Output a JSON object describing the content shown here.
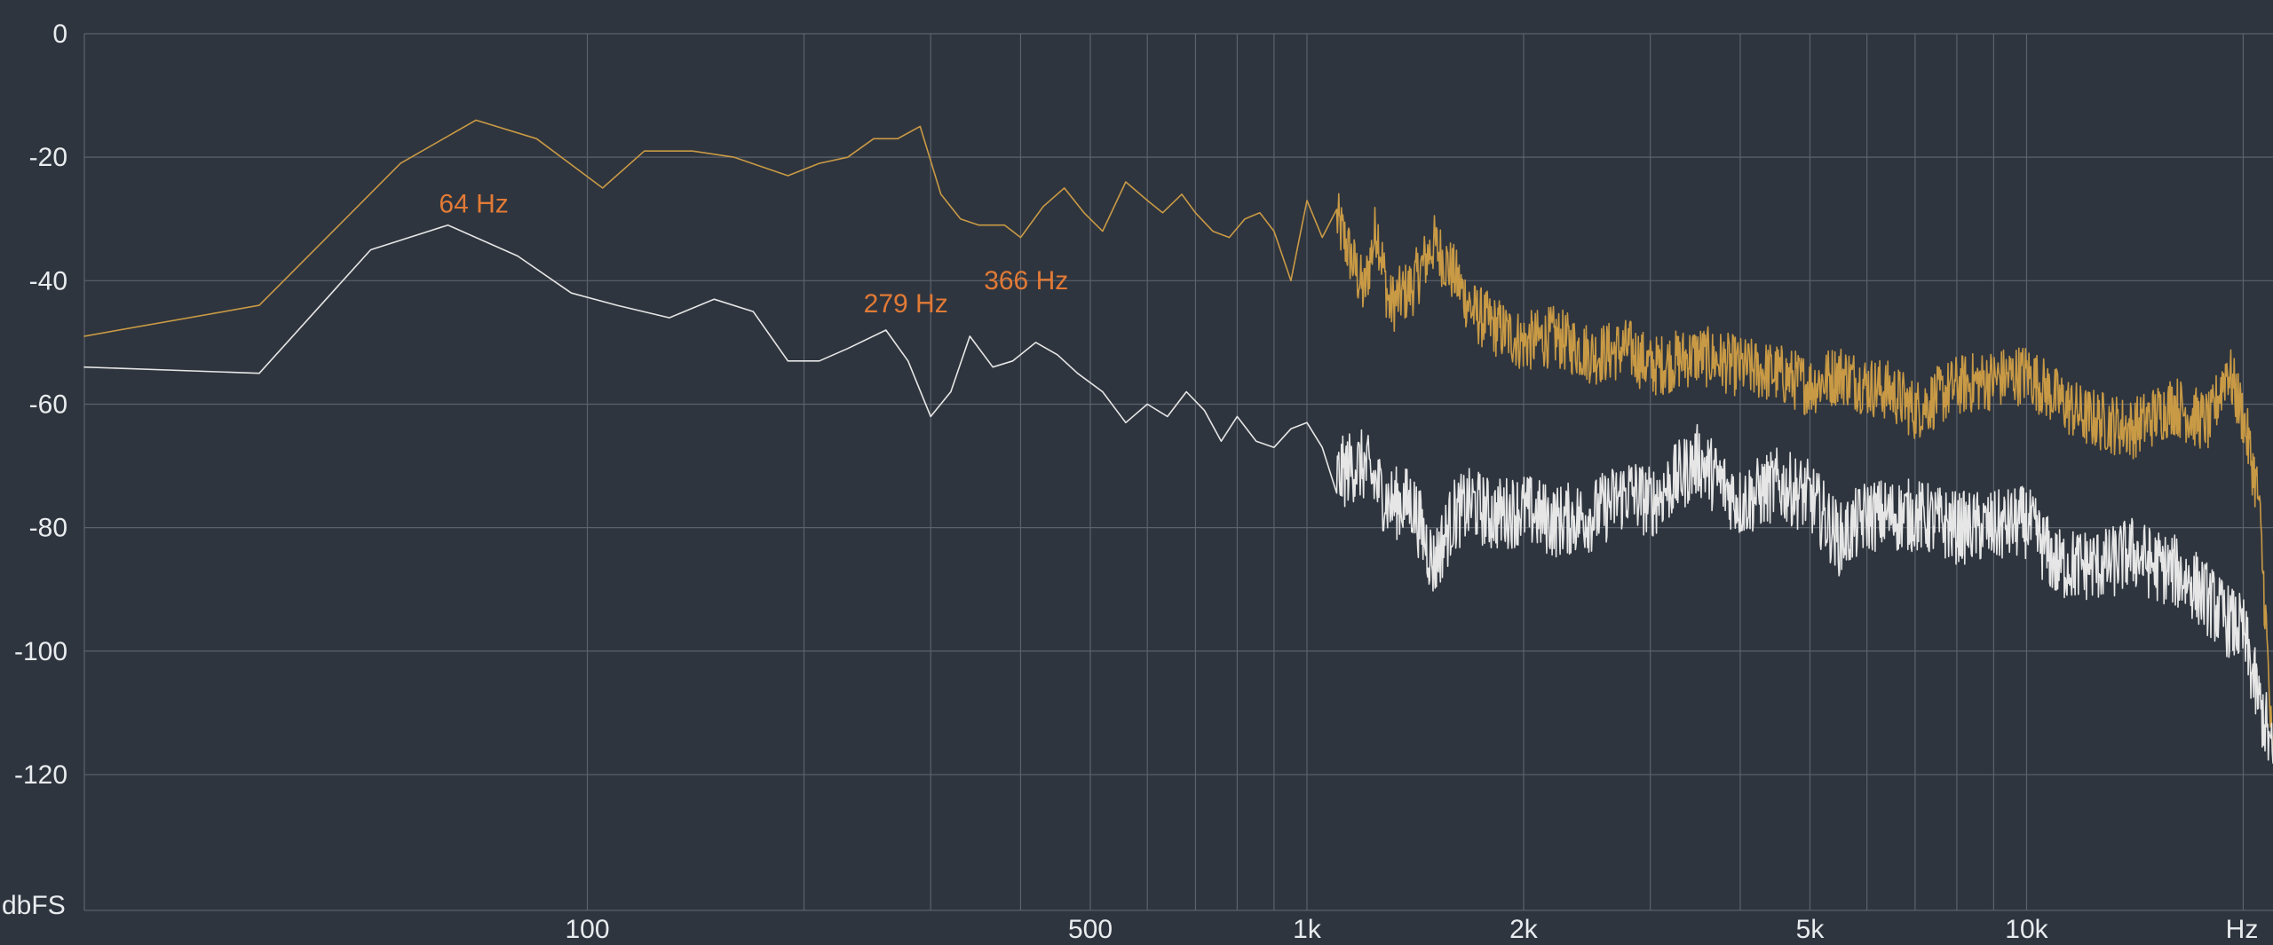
{
  "colors": {
    "background": "#2f353e",
    "grid": "#5b626c",
    "text": "#e9ecef",
    "peak_label": "#e27a36"
  },
  "chart_data": {
    "type": "line",
    "title": "",
    "xlabel": "",
    "ylabel": "",
    "x_scale": "log",
    "xlim": [
      20,
      22000
    ],
    "ylim": [
      -142,
      0
    ],
    "grid": true,
    "y_ticks": [
      0,
      -20,
      -40,
      -60,
      -80,
      -100,
      -120
    ],
    "y_unit_label": "dbFS",
    "x_tick_labels": [
      {
        "value": 100,
        "label": "100"
      },
      {
        "value": 500,
        "label": "500"
      },
      {
        "value": 1000,
        "label": "1k"
      },
      {
        "value": 2000,
        "label": "2k"
      },
      {
        "value": 5000,
        "label": "5k"
      },
      {
        "value": 10000,
        "label": "10k"
      }
    ],
    "x_unit_label": "Hz",
    "x_gridlines": [
      100,
      200,
      300,
      400,
      500,
      600,
      700,
      800,
      900,
      1000,
      2000,
      3000,
      4000,
      5000,
      6000,
      7000,
      8000,
      9000,
      10000,
      20000
    ],
    "series": [
      {
        "color": "#c99a45",
        "width": 1.6,
        "points": [
          [
            20,
            -49
          ],
          [
            35,
            -44
          ],
          [
            55,
            -21
          ],
          [
            70,
            -14
          ],
          [
            85,
            -17
          ],
          [
            105,
            -25
          ],
          [
            120,
            -19
          ],
          [
            140,
            -19
          ],
          [
            160,
            -20
          ],
          [
            190,
            -23
          ],
          [
            210,
            -21
          ],
          [
            230,
            -20
          ],
          [
            250,
            -17
          ],
          [
            270,
            -17
          ],
          [
            290,
            -15
          ],
          [
            310,
            -26
          ],
          [
            330,
            -30
          ],
          [
            350,
            -31
          ],
          [
            380,
            -31
          ],
          [
            400,
            -33
          ],
          [
            430,
            -28
          ],
          [
            460,
            -25
          ],
          [
            490,
            -29
          ],
          [
            520,
            -32
          ],
          [
            560,
            -24
          ],
          [
            600,
            -27
          ],
          [
            630,
            -29
          ],
          [
            670,
            -26
          ],
          [
            700,
            -29
          ],
          [
            740,
            -32
          ],
          [
            780,
            -33
          ],
          [
            820,
            -30
          ],
          [
            860,
            -29
          ],
          [
            900,
            -32
          ],
          [
            950,
            -40
          ],
          [
            1000,
            -27
          ],
          [
            1050,
            -33
          ],
          [
            1100,
            -30
          ],
          [
            1150,
            -36
          ],
          [
            1200,
            -42
          ],
          [
            1250,
            -31
          ],
          [
            1300,
            -44
          ],
          [
            1400,
            -41
          ],
          [
            1500,
            -34
          ],
          [
            1600,
            -39
          ],
          [
            1700,
            -45
          ],
          [
            1800,
            -47
          ],
          [
            2000,
            -50
          ],
          [
            2200,
            -49
          ],
          [
            2500,
            -52
          ],
          [
            2800,
            -51
          ],
          [
            3000,
            -54
          ],
          [
            3500,
            -52
          ],
          [
            4000,
            -54
          ],
          [
            4500,
            -55
          ],
          [
            5000,
            -57
          ],
          [
            5500,
            -55
          ],
          [
            6000,
            -57
          ],
          [
            6500,
            -58
          ],
          [
            7000,
            -61
          ],
          [
            8000,
            -57
          ],
          [
            9000,
            -56
          ],
          [
            10000,
            -55
          ],
          [
            11000,
            -59
          ],
          [
            12000,
            -62
          ],
          [
            13000,
            -63
          ],
          [
            14000,
            -64
          ],
          [
            15000,
            -62
          ],
          [
            16000,
            -60
          ],
          [
            17000,
            -62
          ],
          [
            18000,
            -63
          ],
          [
            19000,
            -54
          ],
          [
            20000,
            -62
          ],
          [
            21000,
            -75
          ],
          [
            21500,
            -95
          ],
          [
            22000,
            -120
          ]
        ],
        "noise_from": 1100,
        "noise_amp": 5
      },
      {
        "color": "#e6e6e6",
        "width": 1.6,
        "points": [
          [
            20,
            -54
          ],
          [
            35,
            -55
          ],
          [
            50,
            -35
          ],
          [
            64,
            -31
          ],
          [
            80,
            -36
          ],
          [
            95,
            -42
          ],
          [
            110,
            -44
          ],
          [
            130,
            -46
          ],
          [
            150,
            -43
          ],
          [
            170,
            -45
          ],
          [
            190,
            -53
          ],
          [
            210,
            -53
          ],
          [
            230,
            -51
          ],
          [
            260,
            -48
          ],
          [
            279,
            -53
          ],
          [
            300,
            -62
          ],
          [
            320,
            -58
          ],
          [
            340,
            -49
          ],
          [
            366,
            -54
          ],
          [
            390,
            -53
          ],
          [
            420,
            -50
          ],
          [
            450,
            -52
          ],
          [
            480,
            -55
          ],
          [
            520,
            -58
          ],
          [
            560,
            -63
          ],
          [
            600,
            -60
          ],
          [
            640,
            -62
          ],
          [
            680,
            -58
          ],
          [
            720,
            -61
          ],
          [
            760,
            -66
          ],
          [
            800,
            -62
          ],
          [
            850,
            -66
          ],
          [
            900,
            -67
          ],
          [
            950,
            -64
          ],
          [
            1000,
            -63
          ],
          [
            1050,
            -67
          ],
          [
            1100,
            -72
          ],
          [
            1150,
            -70
          ],
          [
            1200,
            -70
          ],
          [
            1300,
            -76
          ],
          [
            1400,
            -76
          ],
          [
            1500,
            -86
          ],
          [
            1600,
            -78
          ],
          [
            1700,
            -76
          ],
          [
            1800,
            -78
          ],
          [
            2000,
            -77
          ],
          [
            2200,
            -79
          ],
          [
            2500,
            -78
          ],
          [
            2800,
            -74
          ],
          [
            3000,
            -76
          ],
          [
            3500,
            -69
          ],
          [
            4000,
            -76
          ],
          [
            4500,
            -73
          ],
          [
            5000,
            -75
          ],
          [
            5500,
            -82
          ],
          [
            6000,
            -78
          ],
          [
            7000,
            -78
          ],
          [
            8000,
            -80
          ],
          [
            9000,
            -80
          ],
          [
            10000,
            -79
          ],
          [
            11000,
            -86
          ],
          [
            12000,
            -86
          ],
          [
            13000,
            -86
          ],
          [
            14000,
            -84
          ],
          [
            15000,
            -86
          ],
          [
            16000,
            -87
          ],
          [
            17000,
            -89
          ],
          [
            18000,
            -92
          ],
          [
            19000,
            -95
          ],
          [
            20000,
            -97
          ],
          [
            21000,
            -108
          ],
          [
            21500,
            -112
          ],
          [
            22000,
            -118
          ]
        ],
        "noise_from": 1100,
        "noise_amp": 6
      }
    ],
    "annotations": [
      {
        "text": "64 Hz",
        "freq": 64,
        "db": -31
      },
      {
        "text": "279 Hz",
        "freq": 279,
        "db": -48
      },
      {
        "text": "366 Hz",
        "freq": 366,
        "db": -48
      }
    ]
  }
}
